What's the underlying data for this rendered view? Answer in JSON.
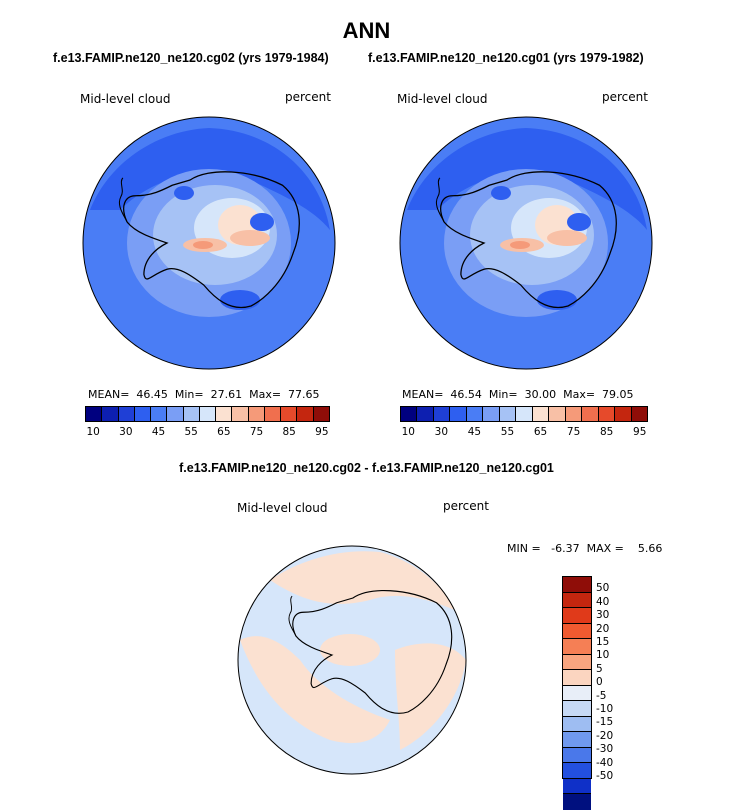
{
  "title": "ANN",
  "panels": [
    {
      "case_title": "f.e13.FAMIP.ne120_ne120.cg02 (yrs 1979-1984)",
      "variable": "Mid-level cloud",
      "units": "percent",
      "stats": "MEAN=  46.45  Min=  27.61  Max=  77.65"
    },
    {
      "case_title": "f.e13.FAMIP.ne120_ne120.cg01 (yrs 1979-1982)",
      "variable": "Mid-level cloud",
      "units": "percent",
      "stats": "MEAN=  46.54  Min=  30.00  Max=  79.05"
    }
  ],
  "diff": {
    "title": "f.e13.FAMIP.ne120_ne120.cg02 - f.e13.FAMIP.ne120_ne120.cg01",
    "variable": "Mid-level cloud",
    "units": "percent",
    "stats": "MIN =   -6.37  MAX =    5.66"
  },
  "colors": {
    "abs_levels": [
      "#00007f",
      "#0d1fb0",
      "#1f3fd6",
      "#2e5ff0",
      "#4a7df5",
      "#7a9ef5",
      "#a6c2f5",
      "#d6e6fa",
      "#fbe1d1",
      "#f8c0a6",
      "#f59a79",
      "#f06f4e",
      "#e64a2b",
      "#c4260f",
      "#8f0d08"
    ],
    "diff_levels": [
      "#8f0d08",
      "#c4260f",
      "#e03a1a",
      "#f05a30",
      "#f57f55",
      "#f8a580",
      "#fbd5c0",
      "#e8eef8",
      "#c6d9f5",
      "#9ebdf2",
      "#7099ee",
      "#4a78ea",
      "#2350e0",
      "#0f30c8",
      "#00107f"
    ]
  },
  "chart_data": {
    "type": "heatmap",
    "abs_colorbar_ticks": [
      "10",
      "30",
      "45",
      "55",
      "65",
      "75",
      "85",
      "95"
    ],
    "diff_colorbar_ticks": [
      "50",
      "40",
      "30",
      "20",
      "15",
      "10",
      "5",
      "0",
      "-5",
      "-10",
      "-15",
      "-20",
      "-30",
      "-40",
      "-50"
    ]
  }
}
